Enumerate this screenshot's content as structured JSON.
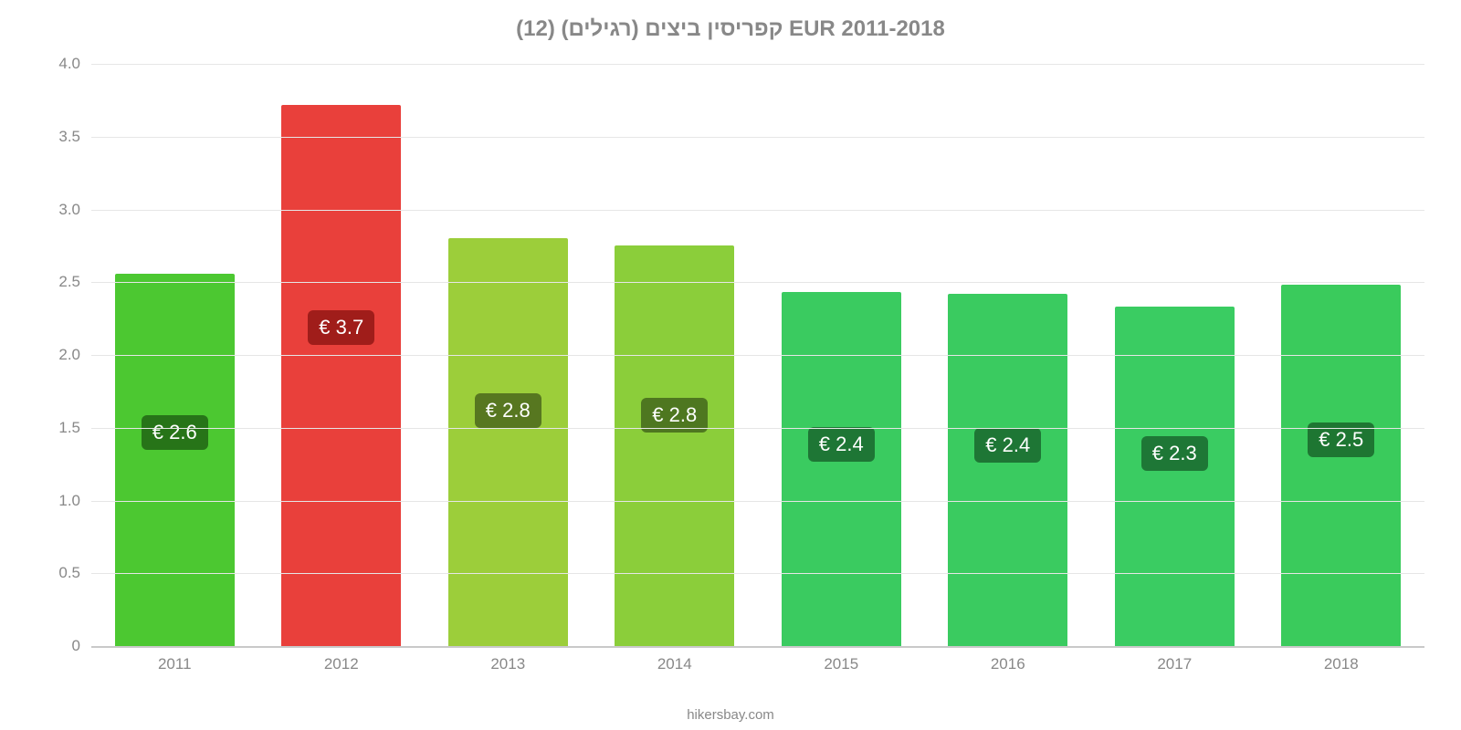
{
  "chart": {
    "type": "bar",
    "title": "קפריסין ביצים (רגילים) (12) EUR 2011-2018",
    "title_color": "#888888",
    "title_fontsize": 24,
    "background_color": "#ffffff",
    "axis_color": "#c9c9c9",
    "grid_color": "#e6e6e6",
    "tick_label_color": "#888888",
    "tick_fontsize": 17,
    "ylim": [
      0,
      4.0
    ],
    "yticks": [
      "0",
      "0.5",
      "1.0",
      "1.5",
      "2.0",
      "2.5",
      "3.0",
      "3.5",
      "4.0"
    ],
    "ytick_values": [
      0,
      0.5,
      1.0,
      1.5,
      2.0,
      2.5,
      3.0,
      3.5,
      4.0
    ],
    "bar_width_pct": 72,
    "categories": [
      "2011",
      "2012",
      "2013",
      "2014",
      "2015",
      "2016",
      "2017",
      "2018"
    ],
    "values": [
      2.56,
      3.72,
      2.8,
      2.75,
      2.43,
      2.42,
      2.33,
      2.48
    ],
    "value_labels": [
      "€ 2.6",
      "€ 3.7",
      "€ 2.8",
      "€ 2.8",
      "€ 2.4",
      "€ 2.4",
      "€ 2.3",
      "€ 2.5"
    ],
    "bar_colors": [
      "#4cc831",
      "#e9403b",
      "#9cce3a",
      "#8bce3a",
      "#3acb60",
      "#3acb60",
      "#3acc62",
      "#3acb5c"
    ],
    "badge_colors": [
      "#277418",
      "#a01d1a",
      "#577720",
      "#4e7720",
      "#1e7635",
      "#1e7635",
      "#1e7736",
      "#1e7632"
    ],
    "badge_fontsize": 22,
    "badge_top_offset_pct": 38,
    "attribution": "hikersbay.com",
    "attribution_color": "#888888",
    "attribution_fontsize": 15
  }
}
